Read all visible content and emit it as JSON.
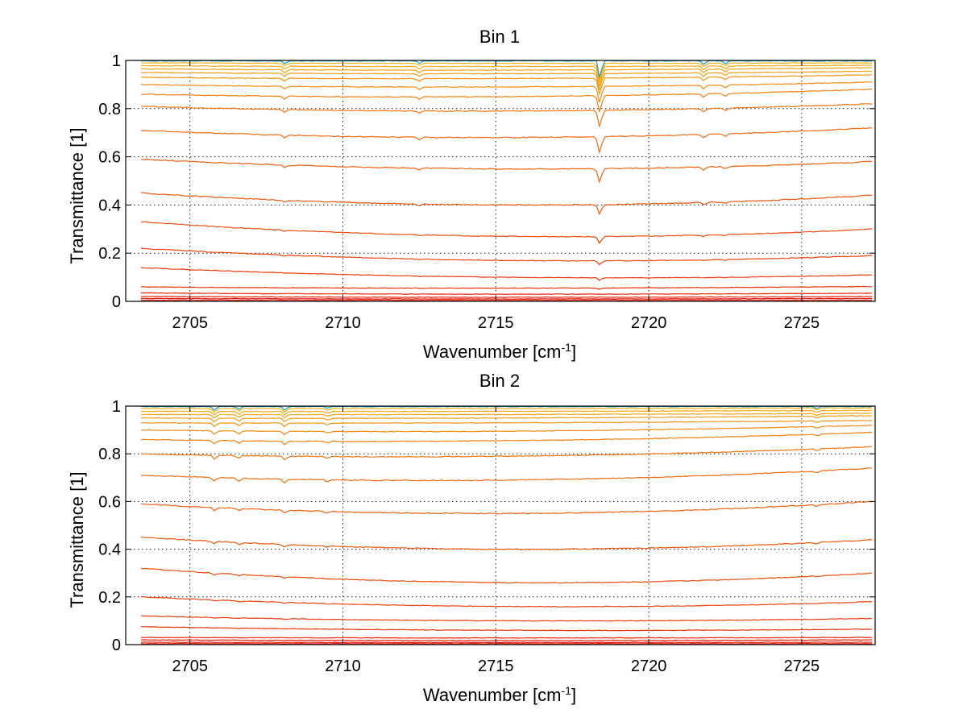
{
  "chart_data": [
    {
      "type": "line",
      "title": "Bin 1",
      "xlabel": "Wavenumber [cm",
      "xlabel_sup": "-1",
      "xlabel_end": "]",
      "ylabel": "Transmittance [1]",
      "xlim": [
        2702.9,
        2727.4
      ],
      "ylim": [
        0,
        1
      ],
      "grid": true,
      "xticks": [
        2705,
        2710,
        2715,
        2720,
        2725
      ],
      "yticks": [
        0,
        0.2,
        0.4,
        0.6,
        0.8,
        1
      ],
      "ytick_labels": [
        "0",
        "0.2",
        "0.4",
        "0.6",
        "0.8",
        "1"
      ],
      "x_start": 2703.4,
      "x_end": 2727.3,
      "colors": {
        "low": "#e6220a",
        "mid": "#f5700f",
        "high": "#f5a20c",
        "top": "#19a0c8"
      },
      "series": [
        {
          "values": [
            0.005,
            0.005,
            0.005
          ],
          "color": "#e6180a"
        },
        {
          "values": [
            0.012,
            0.01,
            0.012
          ],
          "color": "#e6180a"
        },
        {
          "values": [
            0.02,
            0.017,
            0.02
          ],
          "color": "#e61e0a"
        },
        {
          "values": [
            0.035,
            0.03,
            0.034
          ],
          "color": "#e8250b"
        },
        {
          "values": [
            0.06,
            0.055,
            0.062
          ],
          "color": "#ea2f0c"
        },
        {
          "values": [
            0.14,
            0.1,
            0.11
          ],
          "color": "#eb3a0c"
        },
        {
          "values": [
            0.22,
            0.17,
            0.19
          ],
          "color": "#ec430d"
        },
        {
          "values": [
            0.33,
            0.27,
            0.3
          ],
          "color": "#ed4c0d"
        },
        {
          "values": [
            0.45,
            0.4,
            0.44
          ],
          "color": "#ee560e"
        },
        {
          "values": [
            0.59,
            0.55,
            0.58
          ],
          "color": "#ef600e"
        },
        {
          "values": [
            0.71,
            0.68,
            0.72
          ],
          "color": "#f06a0f"
        },
        {
          "values": [
            0.81,
            0.79,
            0.82
          ],
          "color": "#f17510"
        },
        {
          "values": [
            0.86,
            0.85,
            0.88
          ],
          "color": "#f28010"
        },
        {
          "values": [
            0.9,
            0.89,
            0.91
          ],
          "color": "#f38a10"
        },
        {
          "values": [
            0.93,
            0.925,
            0.94
          ],
          "color": "#f39410"
        },
        {
          "values": [
            0.95,
            0.945,
            0.955
          ],
          "color": "#f49c11"
        },
        {
          "values": [
            0.965,
            0.96,
            0.97
          ],
          "color": "#f4a411"
        },
        {
          "values": [
            0.978,
            0.975,
            0.98
          ],
          "color": "#f5aa12"
        },
        {
          "values": [
            0.99,
            0.988,
            0.99
          ],
          "color": "#f5b012"
        },
        {
          "values": [
            0.998,
            0.998,
            0.998
          ],
          "color": "#19a0c8"
        }
      ],
      "features": [
        {
          "x": 2718.4,
          "depth": 0.07
        },
        {
          "x": 2708.1,
          "depth": 0.012
        },
        {
          "x": 2712.5,
          "depth": 0.01
        },
        {
          "x": 2721.8,
          "depth": 0.015
        },
        {
          "x": 2722.5,
          "depth": 0.012
        }
      ]
    },
    {
      "type": "line",
      "title": "Bin 2",
      "xlabel": "Wavenumber [cm",
      "xlabel_sup": "-1",
      "xlabel_end": "]",
      "ylabel": "Transmittance [1]",
      "xlim": [
        2702.9,
        2727.4
      ],
      "ylim": [
        0,
        1
      ],
      "grid": true,
      "xticks": [
        2705,
        2710,
        2715,
        2720,
        2725
      ],
      "yticks": [
        0,
        0.2,
        0.4,
        0.6,
        0.8,
        1
      ],
      "ytick_labels": [
        "0",
        "0.2",
        "0.4",
        "0.6",
        "0.8",
        "1"
      ],
      "x_start": 2703.4,
      "x_end": 2727.3,
      "colors": {
        "low": "#e6220a",
        "mid": "#f5700f",
        "high": "#f5a20c",
        "top": "#19a0c8"
      },
      "series": [
        {
          "values": [
            0.004,
            0.004,
            0.004
          ],
          "color": "#e6180a"
        },
        {
          "values": [
            0.01,
            0.009,
            0.01
          ],
          "color": "#e6180a"
        },
        {
          "values": [
            0.02,
            0.017,
            0.02
          ],
          "color": "#e61e0a"
        },
        {
          "values": [
            0.03,
            0.028,
            0.03
          ],
          "color": "#e8250b"
        },
        {
          "values": [
            0.075,
            0.06,
            0.065
          ],
          "color": "#ea2f0c"
        },
        {
          "values": [
            0.12,
            0.1,
            0.11
          ],
          "color": "#eb3a0c"
        },
        {
          "values": [
            0.2,
            0.16,
            0.18
          ],
          "color": "#ec430d"
        },
        {
          "values": [
            0.32,
            0.26,
            0.3
          ],
          "color": "#ed4c0d"
        },
        {
          "values": [
            0.45,
            0.4,
            0.44
          ],
          "color": "#ee560e"
        },
        {
          "values": [
            0.59,
            0.55,
            0.6
          ],
          "color": "#ef600e"
        },
        {
          "values": [
            0.71,
            0.69,
            0.74
          ],
          "color": "#f06a0f"
        },
        {
          "values": [
            0.8,
            0.79,
            0.83
          ],
          "color": "#f17510"
        },
        {
          "values": [
            0.86,
            0.855,
            0.89
          ],
          "color": "#f28010"
        },
        {
          "values": [
            0.9,
            0.895,
            0.92
          ],
          "color": "#f38a10"
        },
        {
          "values": [
            0.93,
            0.93,
            0.94
          ],
          "color": "#f39410"
        },
        {
          "values": [
            0.95,
            0.95,
            0.96
          ],
          "color": "#f49c11"
        },
        {
          "values": [
            0.965,
            0.965,
            0.97
          ],
          "color": "#f4a411"
        },
        {
          "values": [
            0.978,
            0.978,
            0.982
          ],
          "color": "#f5aa12"
        },
        {
          "values": [
            0.99,
            0.99,
            0.992
          ],
          "color": "#f5b012"
        },
        {
          "values": [
            0.998,
            0.998,
            0.998
          ],
          "color": "#19a0c8"
        }
      ],
      "features": [
        {
          "x": 2705.8,
          "depth": 0.015
        },
        {
          "x": 2706.6,
          "depth": 0.012
        },
        {
          "x": 2708.1,
          "depth": 0.015
        },
        {
          "x": 2709.5,
          "depth": 0.008
        },
        {
          "x": 2725.5,
          "depth": 0.008
        }
      ]
    }
  ]
}
